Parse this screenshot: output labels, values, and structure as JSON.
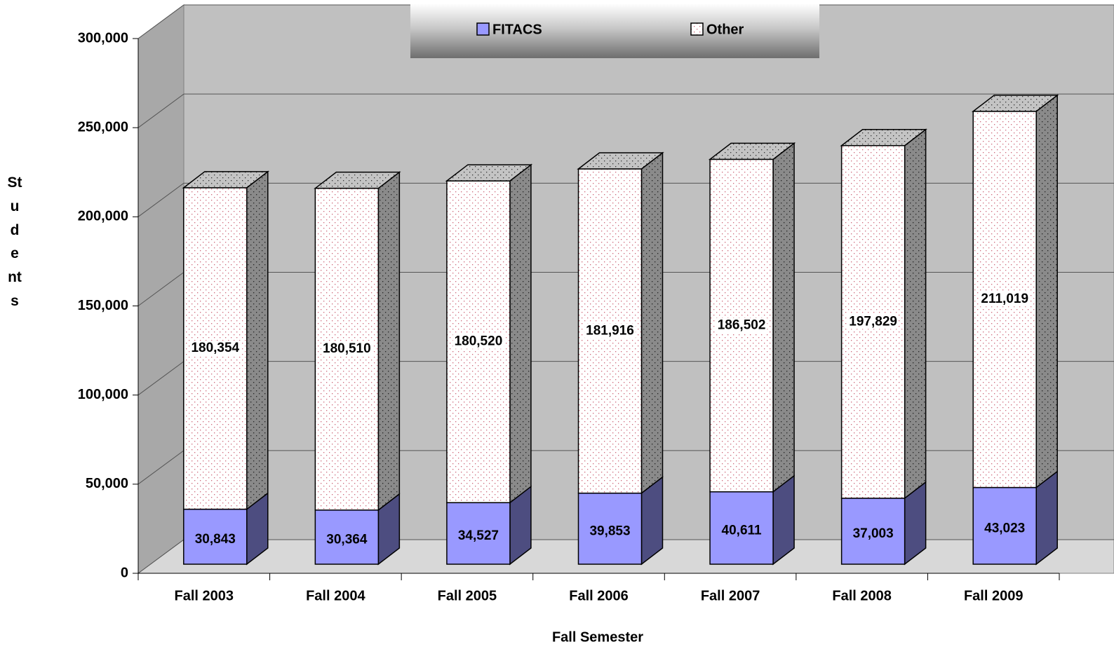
{
  "chart_data": {
    "type": "bar3d_stacked",
    "x_label": "Fall Semester",
    "y_label": "Students",
    "categories": [
      "Fall 2003",
      "Fall 2004",
      "Fall 2005",
      "Fall 2006",
      "Fall 2007",
      "Fall 2008",
      "Fall 2009"
    ],
    "series": [
      {
        "name": "FITACS",
        "color": "#9999ff",
        "side_color": "#4d4d80",
        "values": [
          30843,
          30364,
          34527,
          39853,
          40611,
          37003,
          43023
        ],
        "value_labels": [
          "30,843",
          "30,364",
          "34,527",
          "39,853",
          "40,611",
          "37,003",
          "43,023"
        ]
      },
      {
        "name": "Other",
        "color": "#ffffff",
        "side_color": "#8a8a8a",
        "values": [
          180354,
          180510,
          180520,
          181916,
          186502,
          197829,
          211019
        ],
        "value_labels": [
          "180,354",
          "180,510",
          "180,520",
          "181,916",
          "186,502",
          "197,829",
          "211,019"
        ]
      }
    ],
    "ylim": [
      0,
      300000
    ],
    "yticks": [
      0,
      {
        "value": 50000,
        "label": "50,000"
      },
      {
        "value": 100000,
        "label": "100,000"
      },
      {
        "value": 150000,
        "label": "150,000"
      },
      {
        "value": 200000,
        "label": "200,000"
      },
      {
        "value": 250000,
        "label": "250,000"
      },
      {
        "value": 300000,
        "label": "300,000"
      }
    ],
    "grid": true,
    "legend": "top"
  }
}
